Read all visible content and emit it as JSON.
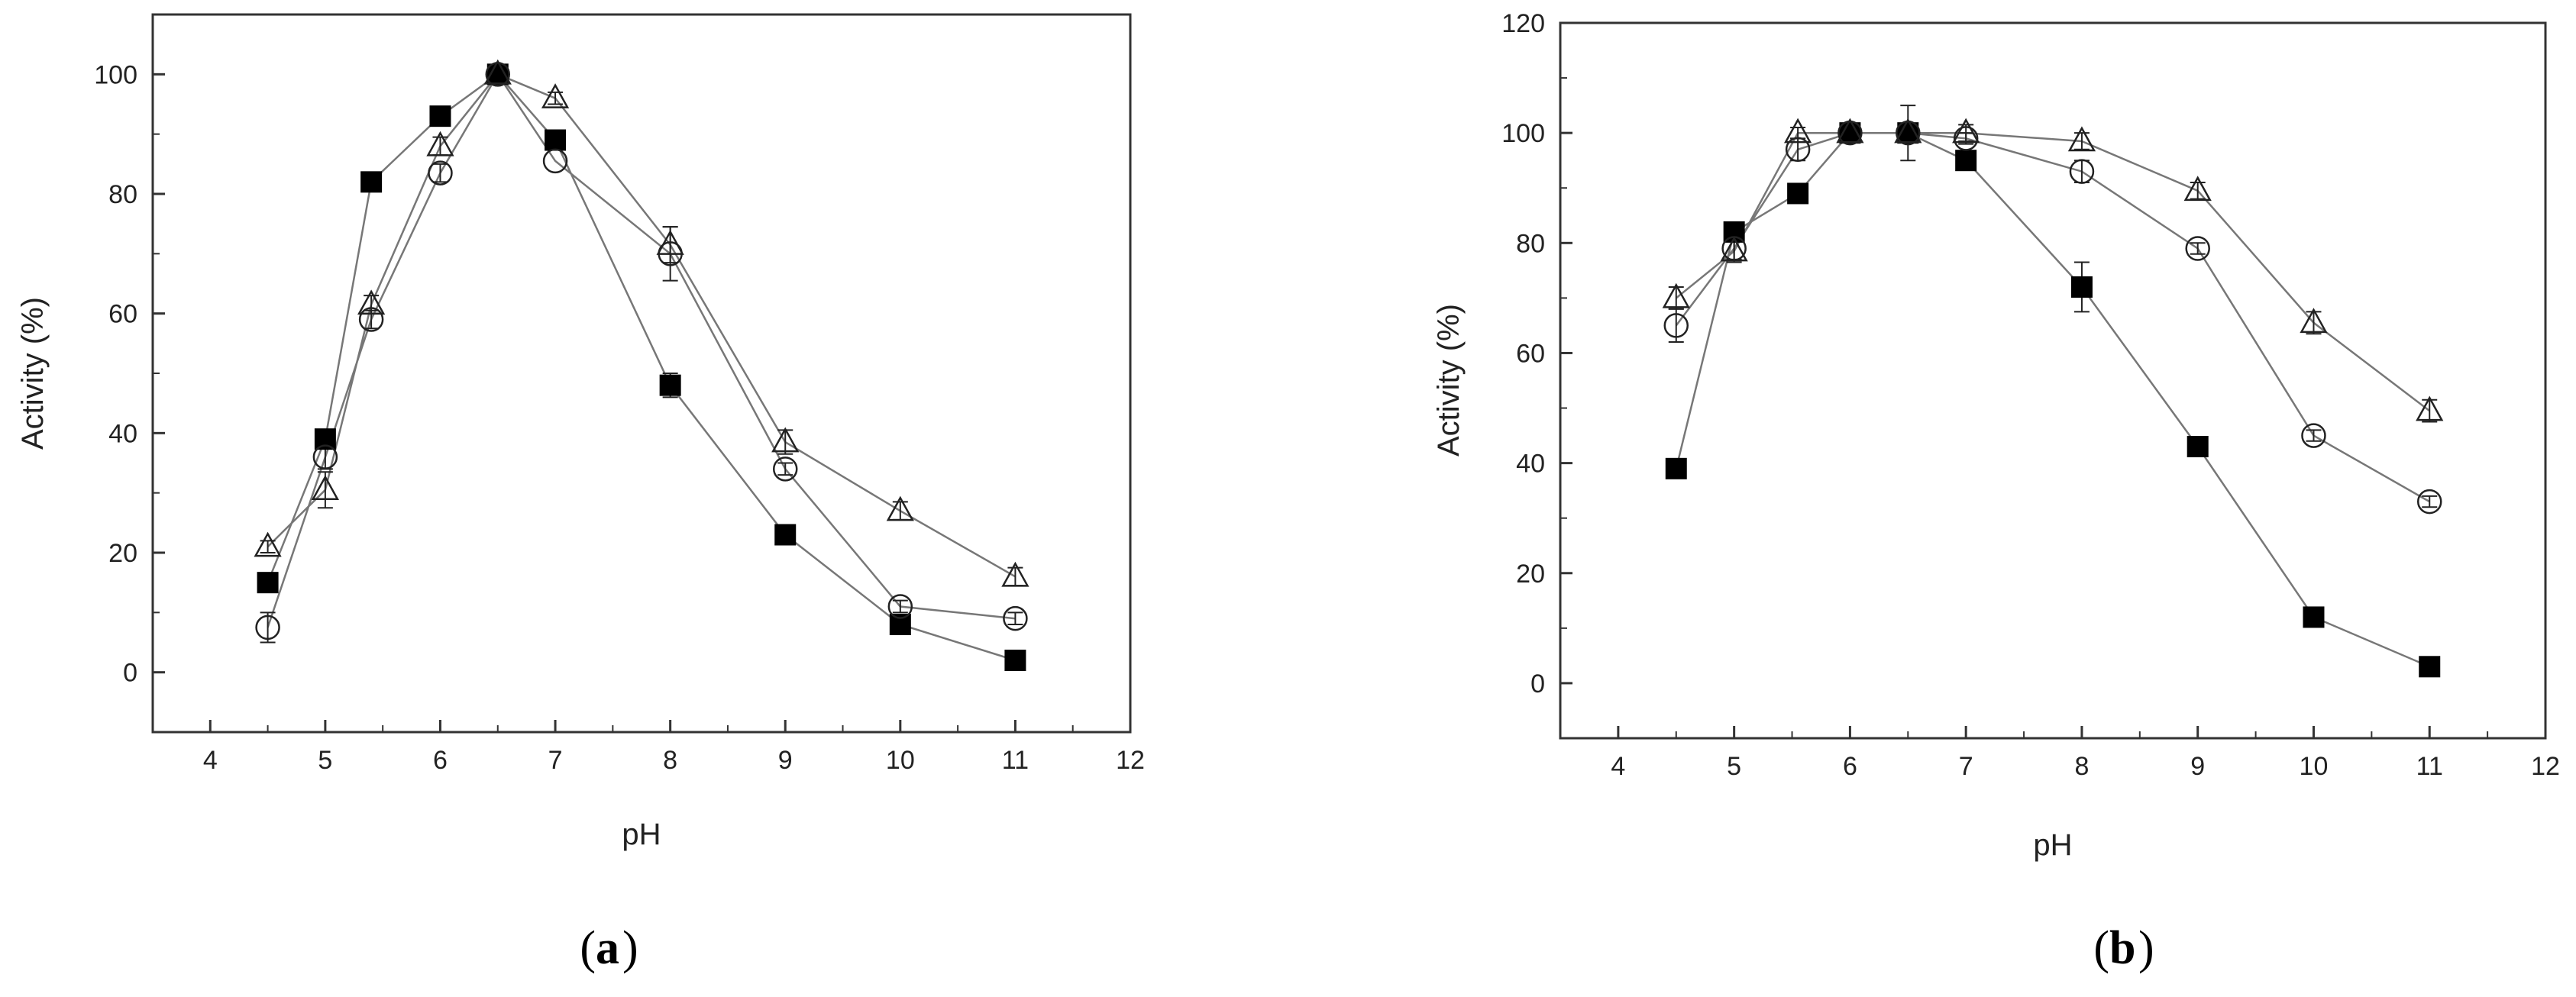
{
  "chart_data": [
    {
      "type": "line",
      "panel_label": "a",
      "xlabel": "pH",
      "ylabel": "Activity (%)",
      "xlim": [
        3.5,
        12
      ],
      "ylim": [
        -10,
        110
      ],
      "xticks": [
        4,
        5,
        6,
        7,
        8,
        9,
        10,
        11,
        12
      ],
      "yticks": [
        0,
        20,
        40,
        60,
        80,
        100
      ],
      "grid": false,
      "legend": "none",
      "series": [
        {
          "marker": "filled-square",
          "x": [
            4.5,
            5,
            5.4,
            6,
            6.5,
            7,
            8,
            9,
            10,
            11
          ],
          "y": [
            15,
            39,
            82,
            93,
            100,
            89,
            48,
            23,
            8,
            2
          ],
          "err": [
            0,
            0,
            0,
            0,
            0,
            0,
            2,
            0,
            0,
            0
          ]
        },
        {
          "marker": "open-circle",
          "x": [
            4.5,
            5,
            5.4,
            6,
            6.5,
            7,
            8,
            9,
            10,
            11
          ],
          "y": [
            7.5,
            36,
            59,
            83.5,
            100,
            85.5,
            70,
            34,
            11,
            9
          ],
          "err": [
            2.5,
            2,
            1.5,
            1.5,
            1,
            0,
            4.5,
            1,
            1,
            1
          ]
        },
        {
          "marker": "open-triangle",
          "x": [
            4.5,
            5,
            5.4,
            6,
            6.5,
            7,
            8,
            9,
            10,
            11
          ],
          "y": [
            21,
            30.5,
            61.5,
            88,
            100,
            96,
            71.5,
            38.5,
            27,
            16
          ],
          "err": [
            1,
            3,
            1.5,
            1.5,
            1,
            1,
            3,
            2,
            1.5,
            1.5
          ]
        }
      ]
    },
    {
      "type": "line",
      "panel_label": "b",
      "xlabel": "pH",
      "ylabel": "Activity (%)",
      "xlim": [
        3.5,
        12
      ],
      "ylim": [
        -10,
        120
      ],
      "xticks": [
        4,
        5,
        6,
        7,
        8,
        9,
        10,
        11,
        12
      ],
      "yticks": [
        0,
        20,
        40,
        60,
        80,
        100,
        120
      ],
      "grid": false,
      "legend": "none",
      "series": [
        {
          "marker": "filled-square",
          "x": [
            4.5,
            5,
            5.55,
            6,
            6.5,
            7,
            8,
            9,
            10,
            11
          ],
          "y": [
            39,
            82,
            89,
            100,
            100,
            95,
            72,
            43,
            12,
            3
          ],
          "err": [
            0,
            0,
            0,
            1.5,
            5,
            0,
            4.5,
            0,
            0,
            0
          ]
        },
        {
          "marker": "open-circle",
          "x": [
            4.5,
            5,
            5.55,
            6,
            6.5,
            7,
            8,
            9,
            10,
            11
          ],
          "y": [
            65,
            79,
            97,
            100,
            100,
            99,
            93,
            79,
            45,
            33
          ],
          "err": [
            3,
            2,
            2,
            1.5,
            1,
            1,
            2,
            1,
            1,
            1
          ]
        },
        {
          "marker": "open-triangle",
          "x": [
            4.5,
            5,
            5.55,
            6,
            6.5,
            7,
            8,
            9,
            10,
            11
          ],
          "y": [
            70,
            78.5,
            100,
            100,
            100,
            100,
            98.5,
            89.5,
            65.5,
            49.5
          ],
          "err": [
            2,
            2,
            1,
            1,
            1,
            1.5,
            1.5,
            1.5,
            2,
            2
          ]
        }
      ]
    }
  ]
}
